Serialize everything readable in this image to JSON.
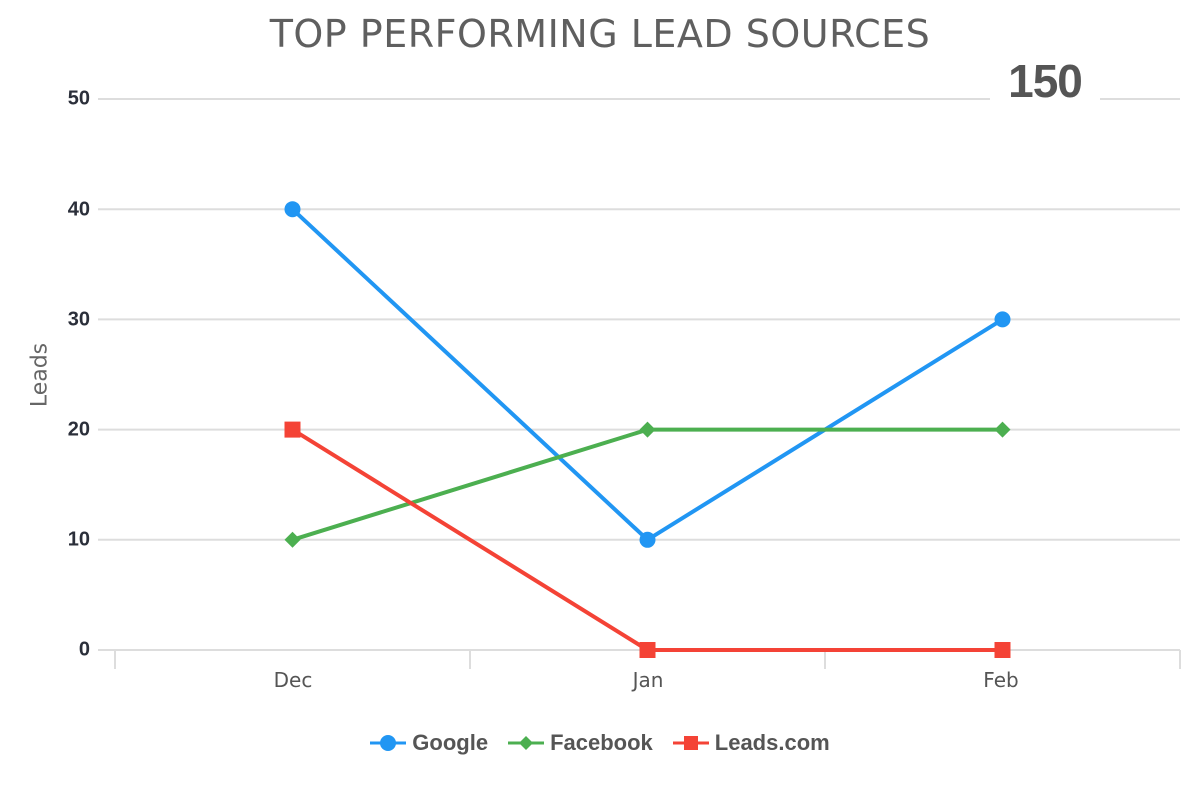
{
  "header": {
    "title": "TOP PERFORMING LEAD SOURCES",
    "total_badge": "150"
  },
  "axes": {
    "y_title": "Leads",
    "y_ticks": [
      "50",
      "40",
      "30",
      "20",
      "10",
      "0"
    ],
    "x_ticks": [
      "Dec",
      "Jan",
      "Feb"
    ]
  },
  "legend": {
    "items": [
      {
        "label": "Google",
        "color": "#2196f3",
        "marker": "circle"
      },
      {
        "label": "Facebook",
        "color": "#4caf50",
        "marker": "diamond"
      },
      {
        "label": "Leads.com",
        "color": "#f44336",
        "marker": "square"
      }
    ]
  },
  "chart_data": {
    "type": "line",
    "title": "TOP PERFORMING LEAD SOURCES",
    "annotation": "150",
    "categories": [
      "Dec",
      "Jan",
      "Feb"
    ],
    "series": [
      {
        "name": "Google",
        "values": [
          40,
          10,
          30
        ],
        "color": "#2196f3",
        "marker": "circle"
      },
      {
        "name": "Facebook",
        "values": [
          10,
          20,
          20
        ],
        "color": "#4caf50",
        "marker": "diamond"
      },
      {
        "name": "Leads.com",
        "values": [
          20,
          0,
          0
        ],
        "color": "#f44336",
        "marker": "square"
      }
    ],
    "xlabel": "",
    "ylabel": "Leads",
    "ylim": [
      0,
      50
    ],
    "yticks": [
      0,
      10,
      20,
      30,
      40,
      50
    ],
    "grid": true,
    "legend_position": "bottom"
  }
}
